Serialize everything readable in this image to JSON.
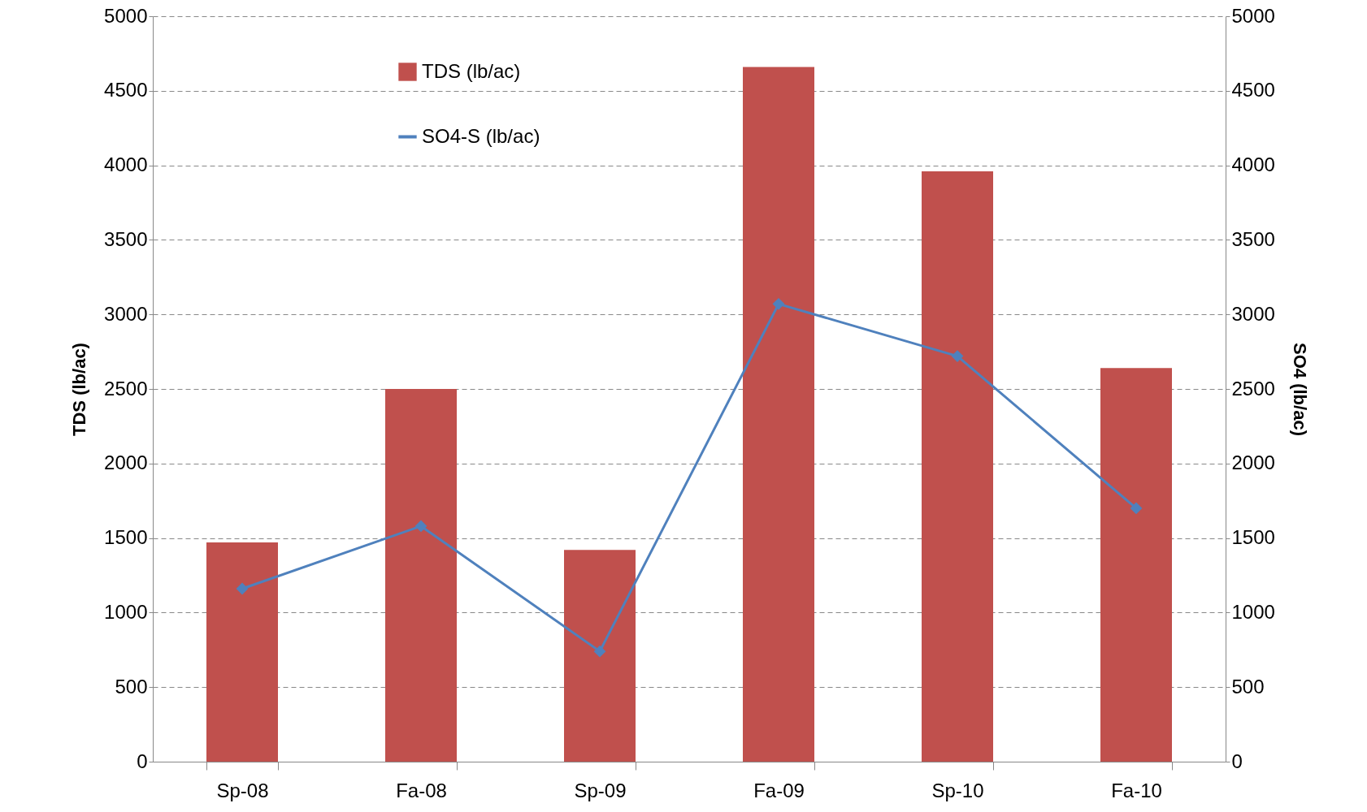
{
  "chart_data": {
    "type": "bar",
    "categories": [
      "Sp-08",
      "Fa-08",
      "Sp-09",
      "Fa-09",
      "Sp-10",
      "Fa-10"
    ],
    "series": [
      {
        "name": "TDS (lb/ac)",
        "color": "#c0504d",
        "values": [
          1470,
          2500,
          1420,
          4660,
          3960,
          2640
        ]
      },
      {
        "name": "SO4-S (lb/ac)",
        "type": "line",
        "axis": "y2",
        "color": "#4f81bd",
        "marker": "diamond",
        "values": [
          1160,
          1580,
          740,
          3070,
          2720,
          1700
        ]
      }
    ],
    "ylabel": "TDS (lb/ac)",
    "y2label": "SO4 (lb/ac)",
    "ylim": [
      0,
      5000
    ],
    "yticks": [
      0,
      500,
      1000,
      1500,
      2000,
      2500,
      3000,
      3500,
      4000,
      4500,
      5000
    ],
    "y2lim": [
      0,
      5000
    ],
    "y2ticks": [
      0,
      500,
      1000,
      1500,
      2000,
      2500,
      3000,
      3500,
      4000,
      4500,
      5000
    ],
    "grid": "y",
    "legend": "top left"
  }
}
